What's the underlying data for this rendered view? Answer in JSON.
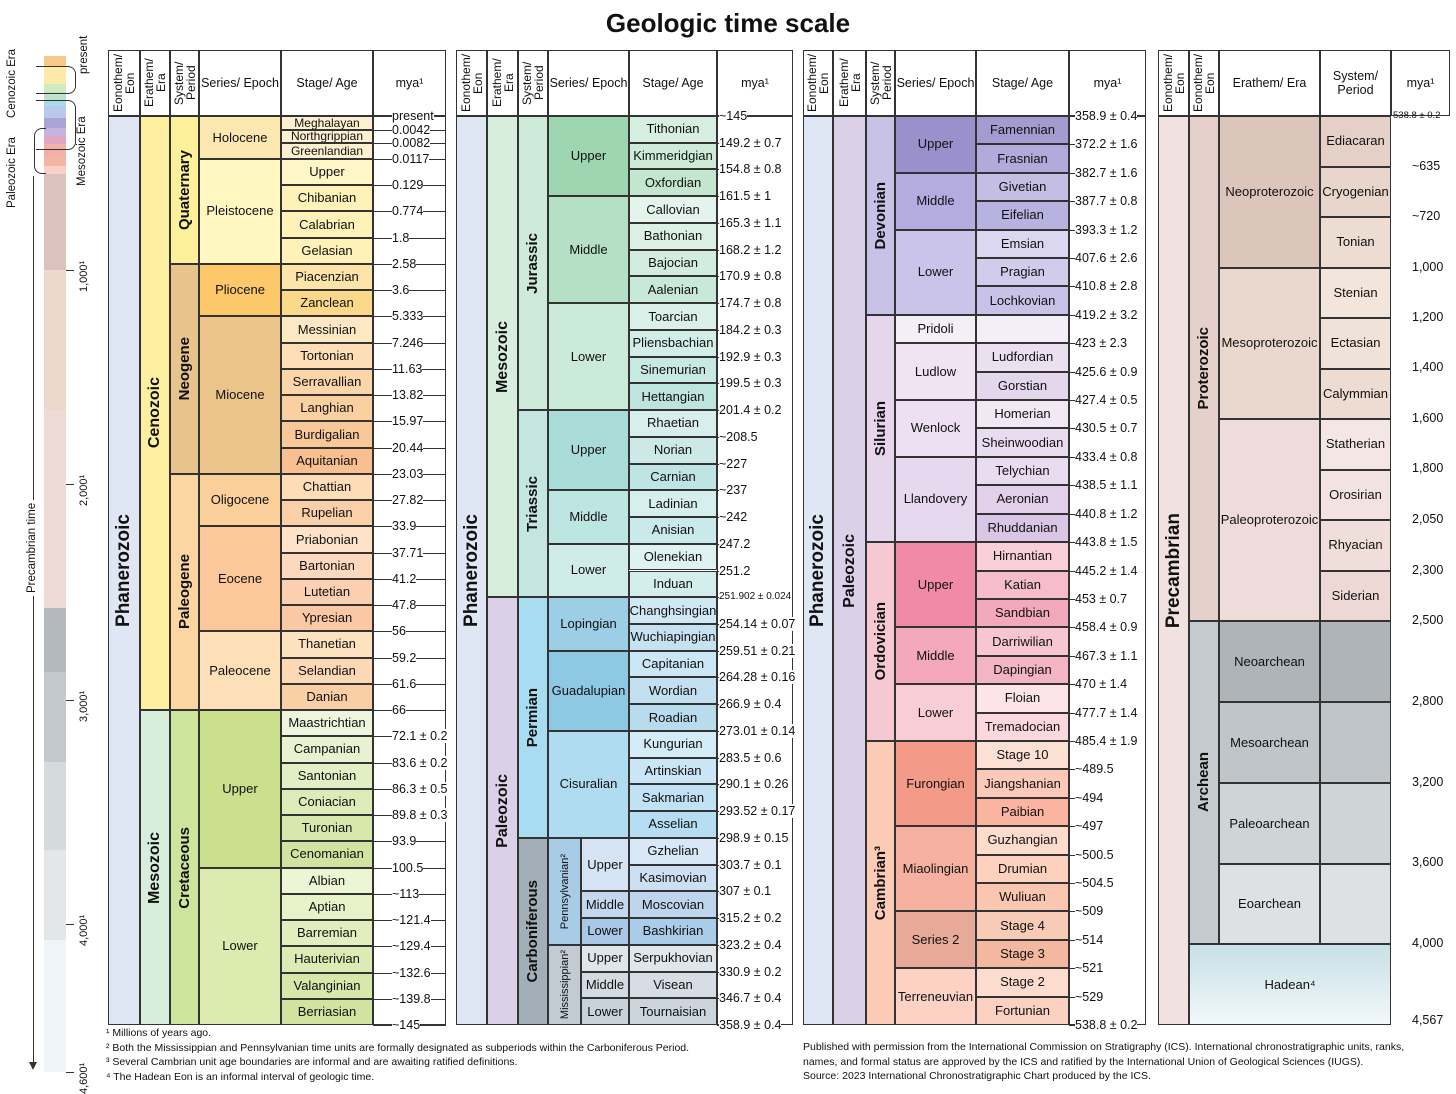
{
  "title": "Geologic time scale",
  "headers": {
    "eon": "Eonothem/ Eon",
    "era": "Erathem/ Era",
    "period": "System/ Period",
    "epoch": "Series/ Epoch",
    "age": "Stage/ Age",
    "mya": "mya¹"
  },
  "sidebar": {
    "present": "present",
    "paleozoic_era": "Paleozoic Era",
    "cenozoic_era": "Cenozoic Era",
    "mesozoic_era": "Mesozoic Era",
    "precambrian_time": "Precambrian time",
    "ticks": [
      "1,000¹",
      "2,000¹",
      "3,000¹",
      "4,000¹",
      "4,600¹"
    ]
  },
  "panel1": {
    "eon": "Phanerozoic",
    "eras": [
      "Cenozoic",
      "Mesozoic"
    ],
    "periods": [
      "Quaternary",
      "Neogene",
      "Paleogene",
      "Cretaceous"
    ],
    "epochs": [
      "Holocene",
      "Pleistocene",
      "Pliocene",
      "Miocene",
      "Oligocene",
      "Eocene",
      "Paleocene",
      "Upper",
      "Lower"
    ],
    "ages": [
      "Meghalayan",
      "Northgrippian",
      "Greenlandian",
      "Upper",
      "Chibanian",
      "Calabrian",
      "Gelasian",
      "Piacenzian",
      "Zanclean",
      "Messinian",
      "Tortonian",
      "Serravallian",
      "Langhian",
      "Burdigalian",
      "Aquitanian",
      "Chattian",
      "Rupelian",
      "Priabonian",
      "Bartonian",
      "Lutetian",
      "Ypresian",
      "Thanetian",
      "Selandian",
      "Danian",
      "Maastrichtian",
      "Campanian",
      "Santonian",
      "Coniacian",
      "Turonian",
      "Cenomanian",
      "Albian",
      "Aptian",
      "Barremian",
      "Hauterivian",
      "Valanginian",
      "Berriasian"
    ],
    "mya": [
      "present",
      "0.0042",
      "0.0082",
      "0.0117",
      "0.129",
      "0.774",
      "1.8",
      "2.58",
      "3.6",
      "5.333",
      "7.246",
      "11.63",
      "13.82",
      "15.97",
      "20.44",
      "23.03",
      "27.82",
      "33.9",
      "37.71",
      "41.2",
      "47.8",
      "56",
      "59.2",
      "61.6",
      "66",
      "72.1 ± 0.2",
      "83.6 ± 0.2",
      "86.3 ± 0.5",
      "89.8 ± 0.3",
      "93.9",
      "100.5",
      "~113",
      "~121.4",
      "~129.4",
      "~132.6",
      "~139.8",
      "~145"
    ]
  },
  "panel2": {
    "eon": "Phanerozoic",
    "eras": [
      "Mesozoic",
      "Paleozoic"
    ],
    "periods": [
      "Jurassic",
      "Triassic",
      "Permian",
      "Carboniferous"
    ],
    "subperiods": [
      "Pennsylvanian²",
      "Mississippian²"
    ],
    "epochs": [
      "Upper",
      "Middle",
      "Lower",
      "Upper",
      "Middle",
      "Lower",
      "Lopingian",
      "Guadalupian",
      "Cisuralian",
      "Upper",
      "Middle",
      "Lower",
      "Upper",
      "Middle",
      "Lower"
    ],
    "ages": [
      "Tithonian",
      "Kimmeridgian",
      "Oxfordian",
      "Callovian",
      "Bathonian",
      "Bajocian",
      "Aalenian",
      "Toarcian",
      "Pliensbachian",
      "Sinemurian",
      "Hettangian",
      "Rhaetian",
      "Norian",
      "Carnian",
      "Ladinian",
      "Anisian",
      "Olenekian",
      "Induan",
      "Changhsingian",
      "Wuchiapingian",
      "Capitanian",
      "Wordian",
      "Roadian",
      "Kungurian",
      "Artinskian",
      "Sakmarian",
      "Asselian",
      "Gzhelian",
      "Kasimovian",
      "Moscovian",
      "Bashkirian",
      "Serpukhovian",
      "Visean",
      "Tournaisian"
    ],
    "mya": [
      "~145",
      "149.2 ± 0.7",
      "154.8 ± 0.8",
      "161.5 ± 1",
      "165.3 ± 1.1",
      "168.2 ± 1.2",
      "170.9 ± 0.8",
      "174.7 ± 0.8",
      "184.2 ± 0.3",
      "192.9 ± 0.3",
      "199.5 ± 0.3",
      "201.4 ± 0.2",
      "~208.5",
      "~227",
      "~237",
      "~242",
      "247.2",
      "251.2",
      "251.902 ± 0.024",
      "254.14 ± 0.07",
      "259.51 ± 0.21",
      "264.28 ± 0.16",
      "266.9 ± 0.4",
      "273.01 ± 0.14",
      "283.5 ± 0.6",
      "290.1 ± 0.26",
      "293.52 ± 0.17",
      "298.9 ± 0.15",
      "303.7 ± 0.1",
      "307 ± 0.1",
      "315.2 ± 0.2",
      "323.2 ± 0.4",
      "330.9 ± 0.2",
      "346.7 ± 0.4",
      "358.9 ± 0.4"
    ]
  },
  "panel3": {
    "eon": "Phanerozoic",
    "era": "Paleozoic",
    "periods": [
      "Devonian",
      "Silurian",
      "Ordovician",
      "Cambrian³"
    ],
    "epochs": [
      "Upper",
      "Middle",
      "Lower",
      "Pridoli",
      "Ludlow",
      "Wenlock",
      "Llandovery",
      "Upper",
      "Middle",
      "Lower",
      "Furongian",
      "Miaolingian",
      "Series 2",
      "Terreneuvian"
    ],
    "ages": [
      "Famennian",
      "Frasnian",
      "Givetian",
      "Eifelian",
      "Emsian",
      "Pragian",
      "Lochkovian",
      "",
      "Ludfordian",
      "Gorstian",
      "Homerian",
      "Sheinwoodian",
      "Telychian",
      "Aeronian",
      "Rhuddanian",
      "Hirnantian",
      "Katian",
      "Sandbian",
      "Darriwilian",
      "Dapingian",
      "Floian",
      "Tremadocian",
      "Stage 10",
      "Jiangshanian",
      "Paibian",
      "Guzhangian",
      "Drumian",
      "Wuliuan",
      "Stage 4",
      "Stage 3",
      "Stage 2",
      "Fortunian"
    ],
    "mya": [
      "358.9 ± 0.4",
      "372.2 ± 1.6",
      "382.7 ± 1.6",
      "387.7 ± 0.8",
      "393.3 ± 1.2",
      "407.6 ± 2.6",
      "410.8 ± 2.8",
      "419.2 ± 3.2",
      "423 ± 2.3",
      "425.6 ± 0.9",
      "427.4 ± 0.5",
      "430.5 ± 0.7",
      "433.4 ± 0.8",
      "438.5 ± 1.1",
      "440.8 ± 1.2",
      "443.8 ± 1.5",
      "445.2 ± 1.4",
      "453 ± 0.7",
      "458.4 ± 0.9",
      "467.3 ± 1.1",
      "470 ± 1.4",
      "477.7 ± 1.4",
      "485.4 ± 1.9",
      "~489.5",
      "~494",
      "~497",
      "~500.5",
      "~504.5",
      "~509",
      "~514",
      "~521",
      "~529",
      "538.8 ± 0.2"
    ]
  },
  "panel4": {
    "eon": "Precambrian",
    "sub_eons": [
      "Proterozoic",
      "Archean"
    ],
    "hadean": "Hadean⁴",
    "eras": [
      "Neoproterozoic",
      "Mesoproterozoic",
      "Paleoproterozoic",
      "Neoarchean",
      "Mesoarchean",
      "Paleoarchean",
      "Eoarchean"
    ],
    "periods": [
      "Ediacaran",
      "Cryogenian",
      "Tonian",
      "Stenian",
      "Ectasian",
      "Calymmian",
      "Statherian",
      "Orosirian",
      "Rhyacian",
      "Siderian"
    ],
    "mya": [
      "538.8 ± 0.2",
      "~635",
      "~720",
      "1,000",
      "1,200",
      "1,400",
      "1,600",
      "1,800",
      "2,050",
      "2,300",
      "2,500",
      "2,800",
      "3,200",
      "3,600",
      "4,000",
      "4,567"
    ]
  },
  "footnotes_left": [
    "¹ Millions of years ago.",
    "² Both the Mississippian and Pennsylvanian time units are formally designated as subperiods within the Carboniferous Period.",
    "³ Several Cambrian unit age boundaries are informal and are awaiting ratified definitions.",
    "⁴ The Hadean Eon is an informal interval of geologic time."
  ],
  "footnotes_right": [
    "Published with permission from the International Commission on Stratigraphy (ICS). International chronostratigraphic units, ranks,",
    "names, and formal status are approved by the ICS and ratified by the International Union of Geological Sciences (IUGS).",
    "Source: 2023 International Chronostratigraphic Chart produced by the ICS."
  ],
  "colors": {
    "phanerozoic": "#dfe7f5",
    "cenozoic": "#fbee9a",
    "mesozoic": "#d8eedd",
    "paleozoic": "#dcd0e8",
    "precambrian": "#f2e1e1"
  }
}
